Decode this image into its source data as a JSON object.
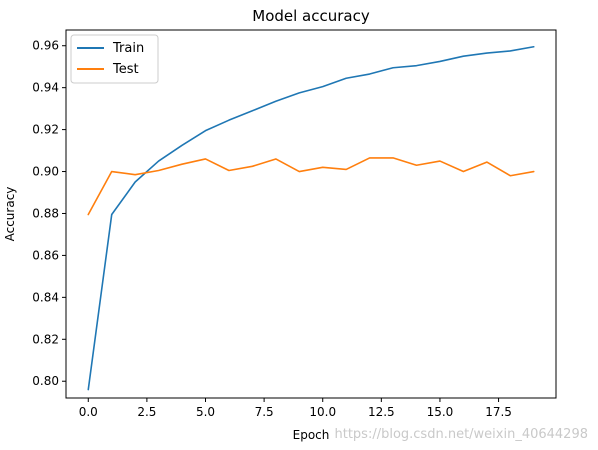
{
  "chart_data": {
    "type": "line",
    "title": "Model accuracy",
    "xlabel": "Epoch",
    "ylabel": "Accuracy",
    "xlim": [
      -0.95,
      19.95
    ],
    "ylim": [
      0.792,
      0.9675
    ],
    "xticks": [
      0.0,
      2.5,
      5.0,
      7.5,
      10.0,
      12.5,
      15.0,
      17.5
    ],
    "xtick_labels": [
      "0.0",
      "2.5",
      "5.0",
      "7.5",
      "10.0",
      "12.5",
      "15.0",
      "17.5"
    ],
    "yticks": [
      0.8,
      0.82,
      0.84,
      0.86,
      0.88,
      0.9,
      0.92,
      0.94,
      0.96
    ],
    "ytick_labels": [
      "0.80",
      "0.82",
      "0.84",
      "0.86",
      "0.88",
      "0.90",
      "0.92",
      "0.94",
      "0.96"
    ],
    "grid": false,
    "legend_position": "upper-left",
    "x": [
      0,
      1,
      2,
      3,
      4,
      5,
      6,
      7,
      8,
      9,
      10,
      11,
      12,
      13,
      14,
      15,
      16,
      17,
      18,
      19
    ],
    "series": [
      {
        "name": "Train",
        "color": "#1f77b4",
        "values": [
          0.796,
          0.8795,
          0.895,
          0.905,
          0.9125,
          0.9195,
          0.9245,
          0.929,
          0.9335,
          0.9375,
          0.9405,
          0.9445,
          0.9465,
          0.9495,
          0.9505,
          0.9525,
          0.955,
          0.9565,
          0.9575,
          0.9595
        ]
      },
      {
        "name": "Test",
        "color": "#ff7f0e",
        "values": [
          0.8795,
          0.9,
          0.8985,
          0.9005,
          0.9035,
          0.906,
          0.9005,
          0.9025,
          0.906,
          0.9,
          0.902,
          0.901,
          0.9065,
          0.9065,
          0.903,
          0.905,
          0.9,
          0.9045,
          0.898,
          0.9
        ]
      }
    ]
  },
  "watermark": "https://blog.csdn.net/weixin_40644298"
}
